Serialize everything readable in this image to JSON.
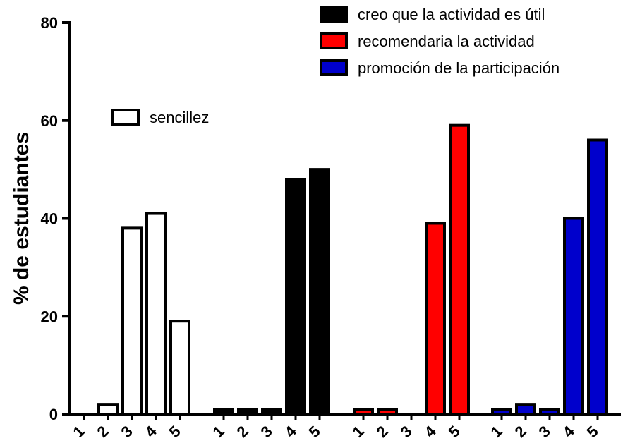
{
  "chart_data": {
    "type": "bar",
    "ylabel": "% de estudiantes",
    "xlabel": "",
    "ylim": [
      0,
      80
    ],
    "y_ticks": [
      0,
      20,
      40,
      60,
      80
    ],
    "categories": [
      "1",
      "2",
      "3",
      "4",
      "5"
    ],
    "series": [
      {
        "name": "sencillez",
        "color": "#ffffff",
        "values": [
          0,
          2,
          38,
          41,
          19
        ]
      },
      {
        "name": "creo que la actividad es útil",
        "color": "#000000",
        "values": [
          1,
          1,
          1,
          48,
          50
        ]
      },
      {
        "name": "recomendaria la actividad",
        "color": "#ff0000",
        "values": [
          1,
          1,
          0,
          39,
          59
        ]
      },
      {
        "name": "promoción de la participación",
        "color": "#0000cc",
        "values": [
          1,
          2,
          1,
          40,
          56
        ]
      }
    ],
    "legend_placement": [
      "left-middle",
      "top-right",
      "top-right",
      "top-right"
    ],
    "grid": false
  }
}
